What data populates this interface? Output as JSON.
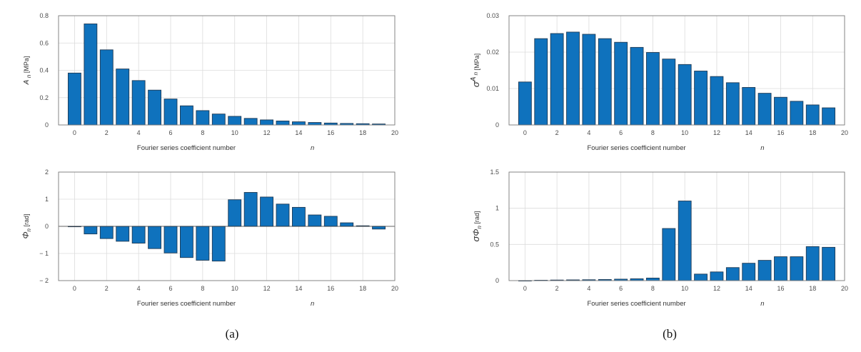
{
  "panel_labels": {
    "a": "(a)",
    "b": "(b)"
  },
  "colors": {
    "bar": "#0f72bd",
    "grid": "#dcdcdc",
    "axis": "#7a7a7a"
  },
  "chart_data": [
    {
      "id": "A_n",
      "type": "bar",
      "xlabel": "Fourier series coefficient number",
      "xvar": "n",
      "ylabel": "A_n [MPa]",
      "x": [
        0,
        1,
        2,
        3,
        4,
        5,
        6,
        7,
        8,
        9,
        10,
        11,
        12,
        13,
        14,
        15,
        16,
        17,
        18,
        19
      ],
      "values": [
        0.38,
        0.74,
        0.55,
        0.41,
        0.325,
        0.255,
        0.19,
        0.14,
        0.105,
        0.08,
        0.063,
        0.048,
        0.037,
        0.029,
        0.023,
        0.018,
        0.014,
        0.011,
        0.009,
        0.007
      ],
      "xlim": [
        -1,
        20
      ],
      "ylim": [
        0,
        0.8
      ],
      "xticks": [
        0,
        2,
        4,
        6,
        8,
        10,
        12,
        14,
        16,
        18,
        20
      ],
      "yticks": [
        0,
        0.2,
        0.4,
        0.6,
        0.8
      ],
      "yticklabels": [
        "0",
        "0.2",
        "0.4",
        "0.6",
        "0.8"
      ],
      "grid": true
    },
    {
      "id": "sigma_A_n",
      "type": "bar",
      "xlabel": "Fourier series coefficient number",
      "xvar": "n",
      "ylabel": "σ A_n [MPa]",
      "x": [
        0,
        1,
        2,
        3,
        4,
        5,
        6,
        7,
        8,
        9,
        10,
        11,
        12,
        13,
        14,
        15,
        16,
        17,
        18,
        19
      ],
      "values": [
        0.0118,
        0.0237,
        0.0251,
        0.0255,
        0.0249,
        0.0237,
        0.0227,
        0.0213,
        0.0199,
        0.0181,
        0.0166,
        0.0148,
        0.0133,
        0.0116,
        0.0103,
        0.0087,
        0.0076,
        0.0065,
        0.0055,
        0.0047
      ],
      "xlim": [
        -1,
        20
      ],
      "ylim": [
        0,
        0.03
      ],
      "xticks": [
        0,
        2,
        4,
        6,
        8,
        10,
        12,
        14,
        16,
        18,
        20
      ],
      "yticks": [
        0,
        0.01,
        0.02,
        0.03
      ],
      "yticklabels": [
        "0",
        "0.01",
        "0.02",
        "0.03"
      ],
      "grid": true
    },
    {
      "id": "Phi_n",
      "type": "bar",
      "xlabel": "Fourier series coefficient number",
      "xvar": "n",
      "ylabel": "Φ_n [rad]",
      "x": [
        0,
        1,
        2,
        3,
        4,
        5,
        6,
        7,
        8,
        9,
        10,
        11,
        12,
        13,
        14,
        15,
        16,
        17,
        18,
        19
      ],
      "values": [
        0,
        -0.28,
        -0.45,
        -0.55,
        -0.62,
        -0.82,
        -0.98,
        -1.15,
        -1.25,
        -1.28,
        0.98,
        1.25,
        1.08,
        0.82,
        0.7,
        0.42,
        0.37,
        0.13,
        0.02,
        -0.1
      ],
      "xlim": [
        -1,
        20
      ],
      "ylim": [
        -2,
        2
      ],
      "xticks": [
        0,
        2,
        4,
        6,
        8,
        10,
        12,
        14,
        16,
        18,
        20
      ],
      "yticks": [
        -2,
        -1,
        0,
        1,
        2
      ],
      "yticklabels": [
        "− 2",
        "− 1",
        "0",
        "1",
        "2"
      ],
      "grid": true
    },
    {
      "id": "sigma_Phi_n",
      "type": "bar",
      "xlabel": "Fourier series coefficient number",
      "xvar": "n",
      "ylabel": "σ Φ_n [rad]",
      "x": [
        0,
        1,
        2,
        3,
        4,
        5,
        6,
        7,
        8,
        9,
        10,
        11,
        12,
        13,
        14,
        15,
        16,
        17,
        18,
        19
      ],
      "values": [
        0,
        0.005,
        0.008,
        0.01,
        0.012,
        0.015,
        0.02,
        0.025,
        0.035,
        0.72,
        1.1,
        0.09,
        0.12,
        0.18,
        0.24,
        0.28,
        0.33,
        0.33,
        0.47,
        0.46
      ],
      "xlim": [
        -1,
        20
      ],
      "ylim": [
        0,
        1.5
      ],
      "xticks": [
        0,
        2,
        4,
        6,
        8,
        10,
        12,
        14,
        16,
        18,
        20
      ],
      "yticks": [
        0,
        0.5,
        1,
        1.5
      ],
      "yticklabels": [
        "0",
        "0.5",
        "1",
        "1.5"
      ],
      "grid": true
    }
  ]
}
